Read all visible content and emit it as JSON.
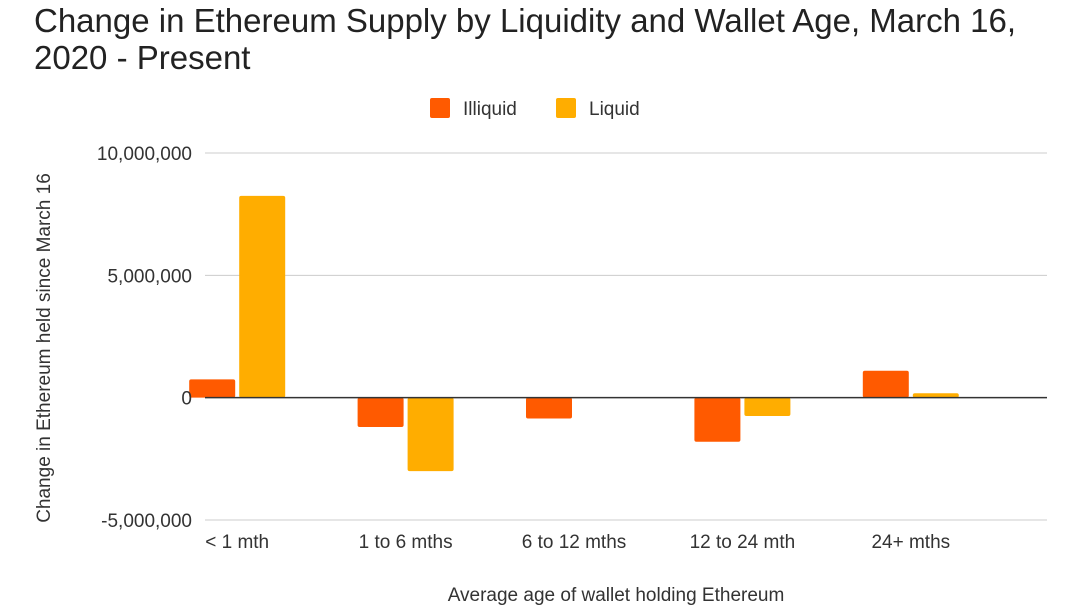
{
  "chart_data": {
    "type": "bar",
    "title": "Change in Ethereum Supply by Liquidity and Wallet Age, March 16, 2020 - Present",
    "xlabel": "Average age of wallet holding Ethereum",
    "ylabel": "Change in Ethereum held since March 16",
    "categories": [
      "< 1 mth",
      "1 to 6 mths",
      "6 to 12 mths",
      "12 to 24 mth",
      "24+ mths"
    ],
    "series": [
      {
        "name": "Illiquid",
        "color": "#ff5a00",
        "values": [
          750000,
          -1200000,
          -850000,
          -1800000,
          1100000
        ]
      },
      {
        "name": "Liquid",
        "color": "#ffad00",
        "values": [
          8250000,
          -3000000,
          0,
          -750000,
          180000
        ]
      }
    ],
    "ylim": [
      -5000000,
      10000000
    ],
    "yticks": [
      10000000,
      5000000,
      0,
      -5000000
    ],
    "ytick_labels": [
      "10,000,000",
      "5,000,000",
      "0",
      "-5,000,000"
    ],
    "grid": true,
    "legend_position": "top-center"
  }
}
